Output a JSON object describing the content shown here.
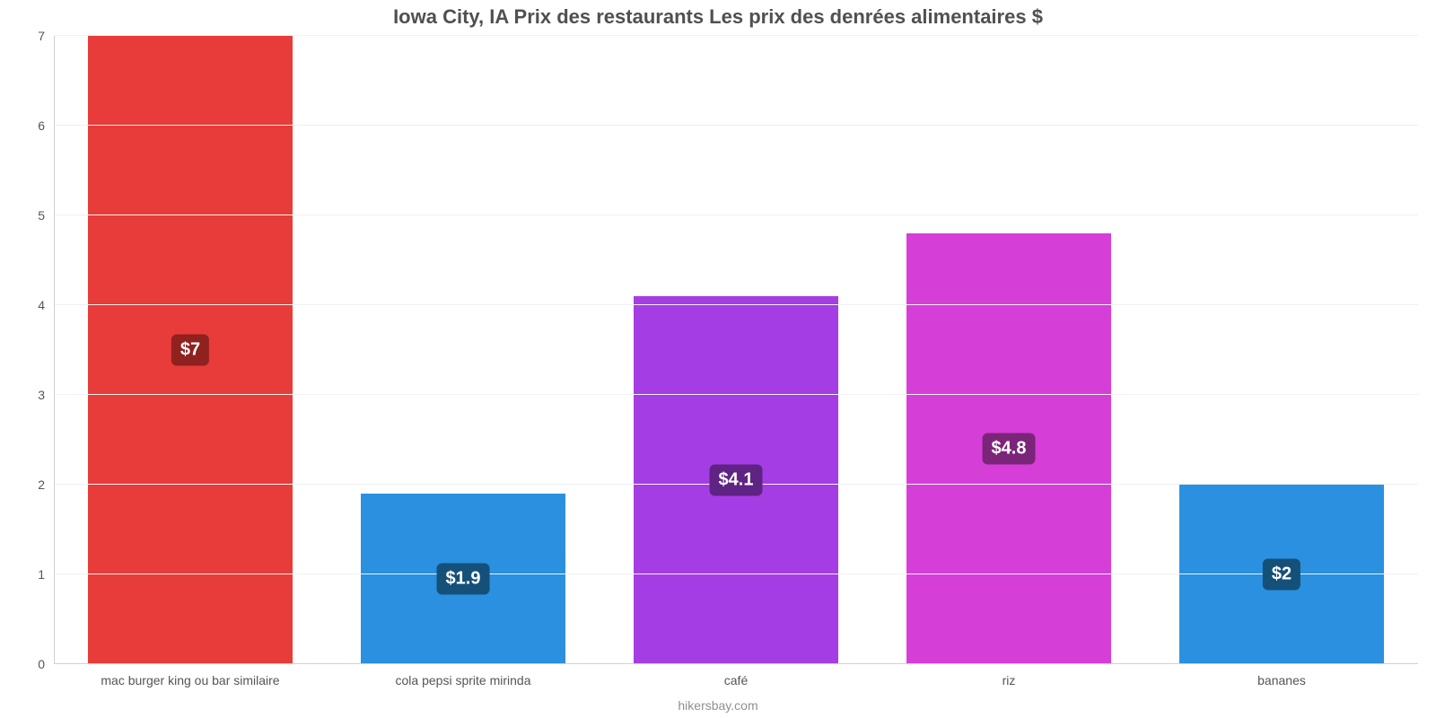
{
  "chart": {
    "type": "bar",
    "title": "Iowa City, IA Prix des restaurants Les prix des denrées alimentaires $",
    "title_fontsize": 22,
    "title_color": "#505050",
    "subtitle": "hikersbay.com",
    "subtitle_fontsize": 14,
    "subtitle_color": "#909090",
    "background_color": "#ffffff",
    "grid_color": "#f0f0f0",
    "axis_color": "#d0d0d0",
    "tick_label_color": "#555555",
    "tick_label_fontsize": 14,
    "ylim": [
      0,
      7
    ],
    "ytick_step": 1,
    "yticks": [
      0,
      1,
      2,
      3,
      4,
      5,
      6,
      7
    ],
    "bar_width_pct": 75,
    "bars": [
      {
        "category": "mac burger king ou bar similaire",
        "value": 7.0,
        "label": "$7",
        "color": "#e73c39",
        "label_bg": "#8f211f"
      },
      {
        "category": "cola pepsi sprite mirinda",
        "value": 1.9,
        "label": "$1.9",
        "color": "#2a90df",
        "label_bg": "#155079"
      },
      {
        "category": "café",
        "value": 4.1,
        "label": "$4.1",
        "color": "#a53de4",
        "label_bg": "#5f2384"
      },
      {
        "category": "riz",
        "value": 4.8,
        "label": "$4.8",
        "color": "#d63ed8",
        "label_bg": "#7b2579"
      },
      {
        "category": "bananes",
        "value": 2.0,
        "label": "$2",
        "color": "#2a90df",
        "label_bg": "#155079"
      }
    ],
    "value_label_fontsize": 20,
    "value_label_color": "#ffffff"
  }
}
